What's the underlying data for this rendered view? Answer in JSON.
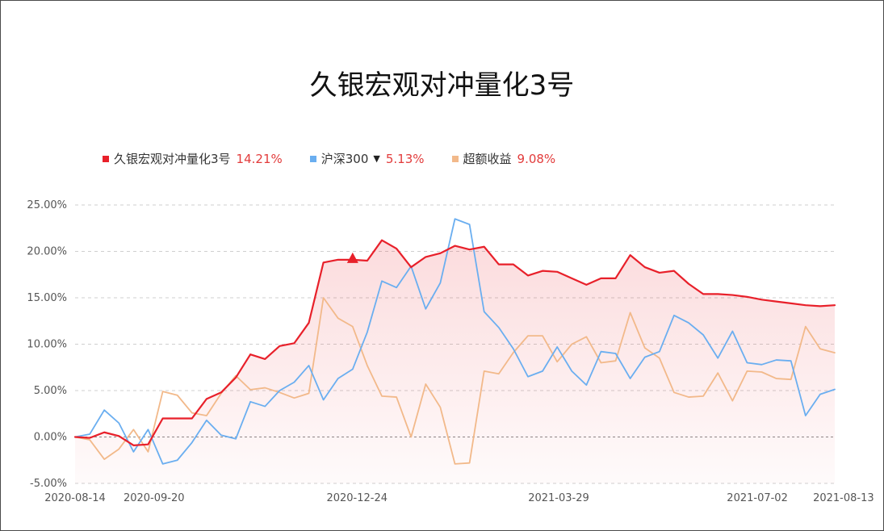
{
  "colors": {
    "fund": "#e8202a",
    "index": "#6aaef0",
    "excess": "#f2b98a",
    "value_red": "#e23b3b",
    "grid": "#cfcfcf",
    "axis_text": "#555555"
  },
  "chart_data": {
    "type": "line",
    "title": "久银宏观对冲量化3号",
    "legend": [
      {
        "name": "久银宏观对冲量化3号",
        "value": "14.21%",
        "color": "#e8202a"
      },
      {
        "name": "沪深300",
        "value": "5.13%",
        "color": "#6aaef0",
        "arrow": "▼"
      },
      {
        "name": "超额收益",
        "value": "9.08%",
        "color": "#f2b98a"
      }
    ],
    "legend_placement": "top-left",
    "x_tick_labels": [
      "2020-08-14",
      "2020-09-20",
      "2020-12-24",
      "2021-03-29",
      "2021-07-02",
      "2021-08-13"
    ],
    "y_tick_labels": [
      "25.00%",
      "20.00%",
      "15.00%",
      "10.00%",
      "5.00%",
      "0.00%",
      "-5.00%"
    ],
    "ylim": [
      -5,
      25
    ],
    "grid": true,
    "num_points": 53,
    "x_ticks": [
      {
        "label": "2020-08-14",
        "index": 0
      },
      {
        "label": "2020-09-20",
        "index": 5.4
      },
      {
        "label": "2020-12-24",
        "index": 19.3
      },
      {
        "label": "2021-03-29",
        "index": 33.1
      },
      {
        "label": "2021-07-02",
        "index": 46.7
      },
      {
        "label": "2021-08-13",
        "index": 52.6
      }
    ],
    "marker": {
      "series": "久银宏观对冲量化3号",
      "index": 19,
      "value": 19.1,
      "shape": "triangle"
    },
    "series": [
      {
        "name": "久银宏观对冲量化3号",
        "color": "#e8202a",
        "area": true,
        "values": [
          0,
          -0.1,
          0.5,
          0.1,
          -0.9,
          -0.8,
          2.0,
          2.0,
          2.0,
          4.1,
          4.8,
          6.4,
          8.9,
          8.4,
          9.8,
          10.1,
          12.3,
          18.8,
          19.1,
          19.1,
          19.0,
          21.2,
          20.3,
          18.3,
          19.4,
          19.8,
          20.6,
          20.2,
          20.5,
          18.6,
          18.6,
          17.4,
          17.9,
          17.8,
          17.1,
          16.4,
          17.1,
          17.1,
          19.6,
          18.3,
          17.7,
          17.9,
          16.5,
          15.4,
          15.4,
          15.3,
          15.1,
          14.8,
          14.6,
          14.4,
          14.2,
          14.1,
          14.2
        ]
      },
      {
        "name": "沪深300",
        "color": "#6aaef0",
        "values": [
          0,
          0.3,
          2.9,
          1.5,
          -1.6,
          0.8,
          -2.9,
          -2.5,
          -0.6,
          1.8,
          0.2,
          -0.2,
          3.8,
          3.3,
          5.0,
          5.9,
          7.7,
          4.0,
          6.3,
          7.3,
          11.3,
          16.8,
          16.1,
          18.4,
          13.8,
          16.6,
          23.5,
          22.9,
          13.5,
          11.8,
          9.5,
          6.5,
          7.1,
          9.7,
          7.1,
          5.6,
          9.2,
          9.0,
          6.3,
          8.6,
          9.2,
          13.1,
          12.3,
          11.0,
          8.5,
          11.4,
          8.0,
          7.8,
          8.3,
          8.2,
          2.3,
          4.6,
          5.13
        ]
      },
      {
        "name": "超额收益",
        "color": "#f2b98a",
        "values": [
          0,
          -0.3,
          -2.4,
          -1.3,
          0.8,
          -1.6,
          4.9,
          4.5,
          2.6,
          2.3,
          4.7,
          6.6,
          5.1,
          5.3,
          4.8,
          4.2,
          4.7,
          15.0,
          12.8,
          11.9,
          7.7,
          4.4,
          4.3,
          0,
          5.7,
          3.2,
          -2.9,
          -2.8,
          7.1,
          6.8,
          9.1,
          10.9,
          10.9,
          8.1,
          10.0,
          10.8,
          8.0,
          8.2,
          13.4,
          9.6,
          8.5,
          4.8,
          4.3,
          4.4,
          6.9,
          3.9,
          7.1,
          7.0,
          6.3,
          6.2,
          11.9,
          9.5,
          9.08
        ]
      }
    ]
  }
}
